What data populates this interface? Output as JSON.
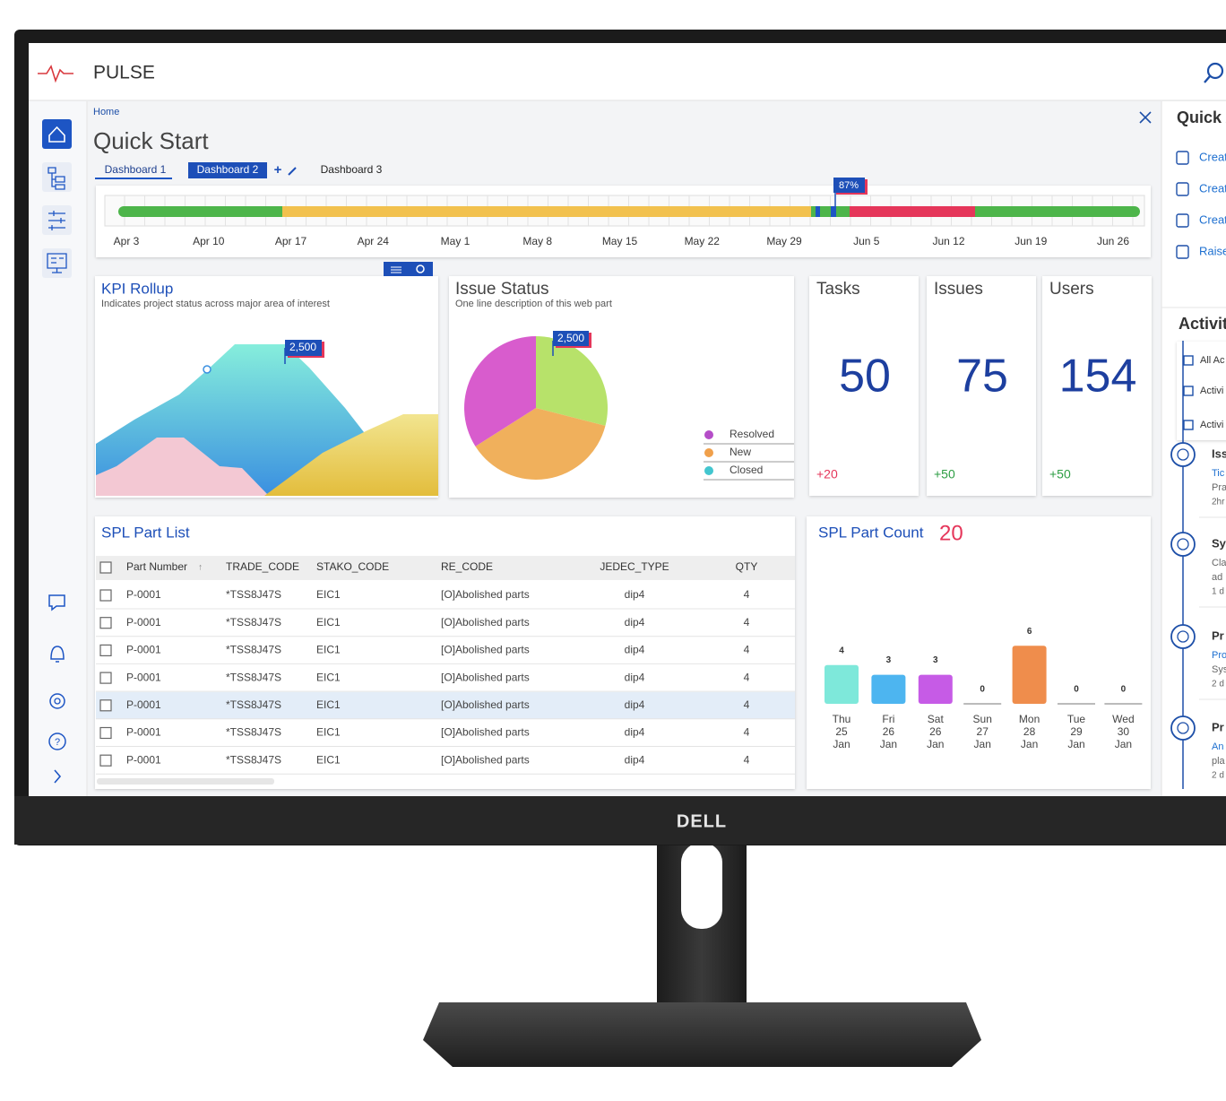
{
  "brand": "DELL",
  "app": {
    "name": "PULSE"
  },
  "breadcrumb": "Home",
  "page_title": "Quick Start",
  "tabs": [
    "Dashboard 1",
    "Dashboard 2",
    "Dashboard 3"
  ],
  "timeline": {
    "dates": [
      "Apr 3",
      "Apr 10",
      "Apr 17",
      "Apr 24",
      "May 1",
      "May 8",
      "May 15",
      "May 22",
      "May 29",
      "Jun 5",
      "Jun 12",
      "Jun 19",
      "Jun 26"
    ],
    "marker": "87%"
  },
  "kpi_rollup": {
    "title": "KPI Rollup",
    "subtitle": "Indicates project status across major area of interest",
    "callout": "2,500"
  },
  "issue_status": {
    "title": "Issue Status",
    "subtitle": "One line description of this web part",
    "callout": "2,500",
    "type": "pie",
    "legend": [
      {
        "name": "Resolved",
        "color": "#b54dc8",
        "value": 34
      },
      {
        "name": "New",
        "color": "#f0a04b",
        "value": 37
      },
      {
        "name": "Closed",
        "color": "#43c6cf",
        "value": 29
      }
    ]
  },
  "stats": [
    {
      "label": "Tasks",
      "value": 50,
      "delta": "+20"
    },
    {
      "label": "Issues",
      "value": 75,
      "delta": "+50"
    },
    {
      "label": "Users",
      "value": 154,
      "delta": "+50"
    }
  ],
  "part_list": {
    "title": "SPL Part List",
    "columns": [
      "Part Number",
      "TRADE_CODE",
      "STAKO_CODE",
      "RE_CODE",
      "JEDEC_TYPE",
      "QTY"
    ],
    "rows": [
      [
        "P-0001",
        "*TSS8J47S",
        "EIC1",
        "[O]Abolished parts",
        "dip4",
        "4"
      ],
      [
        "P-0001",
        "*TSS8J47S",
        "EIC1",
        "[O]Abolished parts",
        "dip4",
        "4"
      ],
      [
        "P-0001",
        "*TSS8J47S",
        "EIC1",
        "[O]Abolished parts",
        "dip4",
        "4"
      ],
      [
        "P-0001",
        "*TSS8J47S",
        "EIC1",
        "[O]Abolished parts",
        "dip4",
        "4"
      ],
      [
        "P-0001",
        "*TSS8J47S",
        "EIC1",
        "[O]Abolished parts",
        "dip4",
        "4"
      ],
      [
        "P-0001",
        "*TSS8J47S",
        "EIC1",
        "[O]Abolished parts",
        "dip4",
        "4"
      ],
      [
        "P-0001",
        "*TSS8J47S",
        "EIC1",
        "[O]Abolished parts",
        "dip4",
        "4"
      ]
    ]
  },
  "part_count": {
    "type": "bar",
    "title": "SPL Part Count",
    "total": 20,
    "categories": [
      [
        "Thu",
        "25",
        "Jan"
      ],
      [
        "Fri",
        "26",
        "Jan"
      ],
      [
        "Sat",
        "26",
        "Jan"
      ],
      [
        "Sun",
        "27",
        "Jan"
      ],
      [
        "Mon",
        "28",
        "Jan"
      ],
      [
        "Tue",
        "29",
        "Jan"
      ],
      [
        "Wed",
        "30",
        "Jan"
      ]
    ],
    "values": [
      4,
      3,
      3,
      0,
      6,
      0,
      0
    ],
    "colors": [
      "#7ee8da",
      "#4db5f0",
      "#c65be6",
      "#bbbbbb",
      "#ef8d4c",
      "#bbbbbb",
      "#bbbbbb"
    ]
  },
  "right_panel": {
    "title": "Quick A",
    "actions": [
      "Creat",
      "Creat",
      "Creat",
      "Raise"
    ],
    "activity_title": "Activity",
    "filters": [
      "All Ac",
      "Activi",
      "Activi"
    ],
    "feed": [
      {
        "title": "Iss",
        "lines": [
          "Tic",
          "Pra",
          "2hr"
        ]
      },
      {
        "title": "Sy",
        "lines": [
          "Cla",
          "ad",
          "1 d"
        ]
      },
      {
        "title": "Pr",
        "lines": [
          "Pro",
          "Sys",
          "2 d"
        ]
      },
      {
        "title": "Pr",
        "lines": [
          "An",
          "pla",
          "2 d"
        ]
      }
    ]
  }
}
